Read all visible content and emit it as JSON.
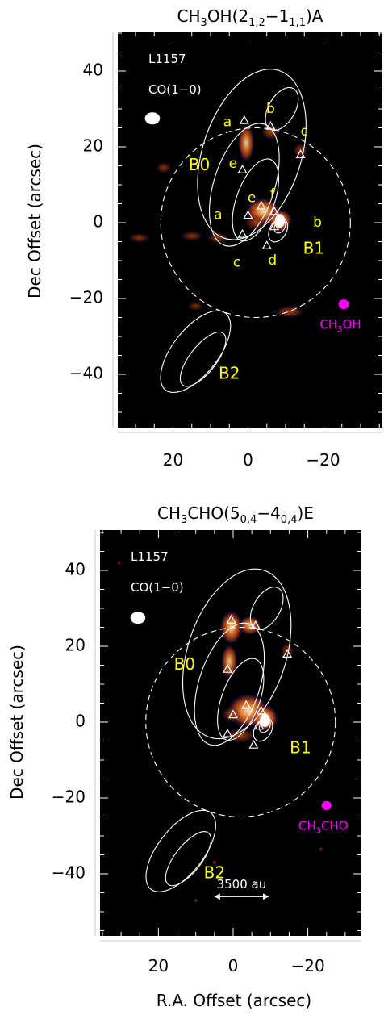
{
  "chart_data": [
    {
      "type": "contour-map",
      "title": {
        "prefix": "CH",
        "s1": "3",
        "mid": "OH(2",
        "s2": "1,2",
        "dash": "−1",
        "s3": "1,1",
        "suffix": ")A"
      },
      "ylabel": "Dec Offset (arcsec)",
      "xlabel": "",
      "xlim": [
        35,
        -35
      ],
      "ylim": [
        -55,
        50
      ],
      "x_major_ticks": [
        20,
        0,
        -20
      ],
      "x_tick_labels": [
        "20",
        "0",
        "−20"
      ],
      "y_major_ticks": [
        40,
        20,
        0,
        -20,
        -40
      ],
      "y_tick_labels": [
        "40",
        "20",
        "0",
        "−20",
        "−40"
      ],
      "minor_tick_step": 5,
      "source_label": "L1157",
      "contour_label": "CO(1−0)",
      "species_label": {
        "prefix": "CH",
        "sub": "3",
        "suffix": "OH"
      },
      "beam_co": {
        "x": 25.5,
        "y": 27.5,
        "rx": 2.0,
        "ry": 1.6
      },
      "beam_species": {
        "x": -25.5,
        "y": -21.5,
        "rx": 1.4,
        "ry": 1.3
      },
      "ring": {
        "x": -2,
        "y": 0,
        "r": 25
      },
      "regions": [
        {
          "name": "B0",
          "x": 13,
          "y": 15
        },
        {
          "name": "B1",
          "x": -17.5,
          "y": -7
        },
        {
          "name": "B2",
          "x": 5,
          "y": -40
        }
      ],
      "letters": [
        {
          "name": "a",
          "x": 5.5,
          "y": 26.5
        },
        {
          "name": "b",
          "x": -6,
          "y": 30
        },
        {
          "name": "c",
          "x": -15,
          "y": 24
        },
        {
          "name": "e",
          "x": 4,
          "y": 15.5
        },
        {
          "name": "e",
          "x": -1,
          "y": 6.5
        },
        {
          "name": "f",
          "x": -6.5,
          "y": 7.5
        },
        {
          "name": "a",
          "x": 8,
          "y": 2
        },
        {
          "name": "b",
          "x": -18.5,
          "y": 0
        },
        {
          "name": "c",
          "x": 3,
          "y": -10.5
        },
        {
          "name": "d",
          "x": -6.5,
          "y": -10
        }
      ],
      "triangles": [
        [
          1,
          27
        ],
        [
          -6,
          25.5
        ],
        [
          -14,
          18
        ],
        [
          1.5,
          14
        ],
        [
          -3.5,
          4.5
        ],
        [
          -7,
          3
        ],
        [
          0,
          2
        ],
        [
          1.5,
          -3
        ],
        [
          -7,
          -1
        ],
        [
          -5,
          -6
        ]
      ],
      "emission": [
        {
          "x": 0.5,
          "y": 21,
          "rx": 2.2,
          "ry": 5,
          "v": 0.7
        },
        {
          "x": -6,
          "y": 24,
          "rx": 2.5,
          "ry": 2.2,
          "v": 0.55
        },
        {
          "x": -14,
          "y": 19,
          "rx": 2,
          "ry": 2,
          "v": 0.5
        },
        {
          "x": -4,
          "y": 3,
          "rx": 4.5,
          "ry": 3.5,
          "v": 0.85
        },
        {
          "x": -8.5,
          "y": 0.5,
          "rx": 3.2,
          "ry": 3,
          "v": 1.0
        },
        {
          "x": -2,
          "y": 0,
          "rx": 3,
          "ry": 2,
          "v": 0.5
        },
        {
          "x": 22.5,
          "y": 14.5,
          "rx": 2,
          "ry": 1.5,
          "v": 0.35
        },
        {
          "x": 15,
          "y": -3.5,
          "rx": 3,
          "ry": 1.3,
          "v": 0.35
        },
        {
          "x": 8,
          "y": -4,
          "rx": 3,
          "ry": 1.5,
          "v": 0.35
        },
        {
          "x": 29,
          "y": -4,
          "rx": 3,
          "ry": 1.3,
          "v": 0.3
        },
        {
          "x": -11,
          "y": -23.5,
          "rx": 4,
          "ry": 1.6,
          "v": 0.6
        },
        {
          "x": 14,
          "y": -22,
          "rx": 2,
          "ry": 1.2,
          "v": 0.3
        }
      ]
    },
    {
      "type": "contour-map",
      "title": {
        "prefix": "CH",
        "s1": "3",
        "mid": "CHO(5",
        "s2": "0,4",
        "dash": "−4",
        "s3": "0,4",
        "suffix": ")E"
      },
      "ylabel": "Dec Offset (arcsec)",
      "xlabel": "R.A. Offset (arcsec)",
      "xlim": [
        35,
        -35
      ],
      "ylim": [
        -55,
        50
      ],
      "x_major_ticks": [
        20,
        0,
        -20
      ],
      "x_tick_labels": [
        "20",
        "0",
        "−20"
      ],
      "y_major_ticks": [
        40,
        20,
        0,
        -20,
        -40
      ],
      "y_tick_labels": [
        "40",
        "20",
        "0",
        "−20",
        "−40"
      ],
      "minor_tick_step": 5,
      "source_label": "L1157",
      "contour_label": "CO(1−0)",
      "species_label": {
        "prefix": "CH",
        "sub": "3",
        "suffix": "CHO"
      },
      "scale_label": "3500 au",
      "scale_bar": {
        "x1": 5,
        "x2": -9.5,
        "y": -46
      },
      "beam_co": {
        "x": 25.5,
        "y": 27.5,
        "rx": 2.0,
        "ry": 1.6
      },
      "beam_species": {
        "x": -25,
        "y": -22,
        "rx": 1.3,
        "ry": 1.2
      },
      "ring": {
        "x": -2,
        "y": 0,
        "r": 25
      },
      "regions": [
        {
          "name": "B0",
          "x": 13,
          "y": 15
        },
        {
          "name": "B1",
          "x": -18,
          "y": -7
        },
        {
          "name": "B2",
          "x": 5,
          "y": -40
        }
      ],
      "letters": [],
      "triangles": [
        [
          0.5,
          27
        ],
        [
          -6,
          25.5
        ],
        [
          -14.5,
          18
        ],
        [
          1.5,
          14
        ],
        [
          -3.5,
          4.5
        ],
        [
          -7.5,
          3
        ],
        [
          0,
          2
        ],
        [
          1.5,
          -3
        ],
        [
          -7,
          -1
        ],
        [
          -5.5,
          -6
        ]
      ],
      "emission": [
        {
          "x": 0.5,
          "y": 25,
          "rx": 3,
          "ry": 4.5,
          "v": 0.8
        },
        {
          "x": -4.5,
          "y": 25.5,
          "rx": 3,
          "ry": 2.5,
          "v": 0.7
        },
        {
          "x": 1,
          "y": 16,
          "rx": 2.2,
          "ry": 4.5,
          "v": 0.7
        },
        {
          "x": -14.5,
          "y": 19,
          "rx": 1.8,
          "ry": 2,
          "v": 0.45
        },
        {
          "x": -4,
          "y": 3,
          "rx": 5.5,
          "ry": 4.5,
          "v": 0.9
        },
        {
          "x": -8.5,
          "y": 1,
          "rx": 3.5,
          "ry": 3.5,
          "v": 1.0
        },
        {
          "x": 0.5,
          "y": 2,
          "rx": 2.5,
          "ry": 2,
          "v": 0.55
        },
        {
          "x": -2,
          "y": -3.5,
          "rx": 4,
          "ry": 2,
          "v": 0.55
        },
        {
          "x": -23.5,
          "y": -33.5,
          "rx": 0.6,
          "ry": 0.6,
          "v": 0.3
        },
        {
          "x": 30.5,
          "y": 42,
          "rx": 0.6,
          "ry": 0.6,
          "v": 0.3
        },
        {
          "x": 5,
          "y": -37,
          "rx": 0.7,
          "ry": 0.7,
          "v": 0.4
        },
        {
          "x": 10,
          "y": -47,
          "rx": 0.6,
          "ry": 0.6,
          "v": 0.4
        }
      ]
    }
  ],
  "colors": {
    "background": "#000000",
    "contour": "#ffffff",
    "region_label": "#ffff00",
    "species": "#ff00ff",
    "emission_low": "#2a1fb0",
    "emission_mid": "#ee6a1a",
    "emission_high": "#ffe7c8"
  }
}
